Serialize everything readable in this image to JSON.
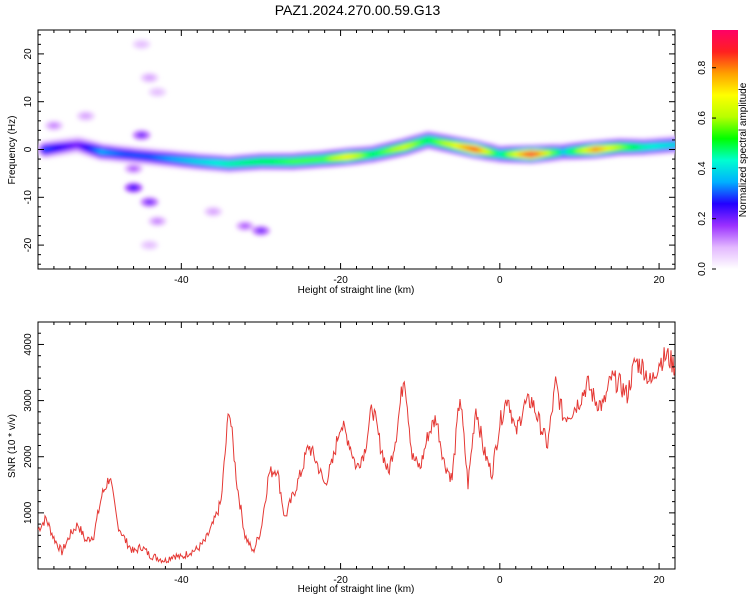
{
  "title": "PAZ1.2024.270.00.59.G13",
  "colors": {
    "snr_line": "#e53935",
    "colormap": [
      "#ffffff",
      "#e3b8ff",
      "#9b30ff",
      "#2200ff",
      "#00b0ff",
      "#00ffd0",
      "#00ff00",
      "#b8ff00",
      "#ffff00",
      "#ffa000",
      "#ff2020",
      "#ff0066"
    ]
  },
  "chart_data": [
    {
      "type": "heatmap",
      "xlabel": "Height of straight line (km)",
      "ylabel": "Frequency (Hz)",
      "xlim": [
        -58,
        22
      ],
      "ylim": [
        -25,
        25
      ],
      "xticks": [
        -40,
        -20,
        0,
        20
      ],
      "yticks": [
        -20,
        -10,
        0,
        10,
        20
      ],
      "xtick_labels": [
        "-40",
        "-20",
        "0",
        "20"
      ],
      "ytick_labels": [
        "-20",
        "-10",
        "0",
        "10",
        "20"
      ],
      "colorbar": {
        "label": "Normalized spectral amplitude",
        "range": [
          0,
          0.95
        ],
        "ticks": [
          0.0,
          0.2,
          0.4,
          0.6,
          0.8
        ],
        "tick_labels": [
          "0.0",
          "0.2",
          "0.4",
          "0.6",
          "0.8"
        ]
      },
      "ridge": [
        {
          "x": -57,
          "y": 0.0,
          "amp": 0.3
        },
        {
          "x": -55,
          "y": 0.5,
          "amp": 0.25
        },
        {
          "x": -53,
          "y": 1.0,
          "amp": 0.2
        },
        {
          "x": -50,
          "y": -0.5,
          "amp": 0.35
        },
        {
          "x": -47,
          "y": -1.0,
          "amp": 0.3
        },
        {
          "x": -44,
          "y": -1.5,
          "amp": 0.3
        },
        {
          "x": -41,
          "y": -2.0,
          "amp": 0.35
        },
        {
          "x": -38,
          "y": -2.5,
          "amp": 0.4
        },
        {
          "x": -34,
          "y": -3.0,
          "amp": 0.45
        },
        {
          "x": -30,
          "y": -2.5,
          "amp": 0.5
        },
        {
          "x": -26,
          "y": -2.5,
          "amp": 0.55
        },
        {
          "x": -22,
          "y": -2.0,
          "amp": 0.55
        },
        {
          "x": -19,
          "y": -1.5,
          "amp": 0.7
        },
        {
          "x": -16,
          "y": -1.0,
          "amp": 0.5
        },
        {
          "x": -12,
          "y": 0.5,
          "amp": 0.65
        },
        {
          "x": -9,
          "y": 2.0,
          "amp": 0.5
        },
        {
          "x": -6,
          "y": 1.0,
          "amp": 0.65
        },
        {
          "x": -3,
          "y": 0.0,
          "amp": 0.85
        },
        {
          "x": 0,
          "y": -1.0,
          "amp": 0.45
        },
        {
          "x": 4,
          "y": -1.0,
          "amp": 0.9
        },
        {
          "x": 8,
          "y": -0.5,
          "amp": 0.4
        },
        {
          "x": 12,
          "y": 0.0,
          "amp": 0.8
        },
        {
          "x": 15,
          "y": 0.5,
          "amp": 0.6
        },
        {
          "x": 18,
          "y": 0.5,
          "amp": 0.45
        },
        {
          "x": 22,
          "y": 1.0,
          "amp": 0.4
        }
      ],
      "blobs": [
        {
          "x": -45,
          "y": 22,
          "amp": 0.08
        },
        {
          "x": -44,
          "y": 15,
          "amp": 0.1
        },
        {
          "x": -43,
          "y": 12,
          "amp": 0.08
        },
        {
          "x": -45,
          "y": 3,
          "amp": 0.2
        },
        {
          "x": -46,
          "y": -4,
          "amp": 0.15
        },
        {
          "x": -46,
          "y": -8,
          "amp": 0.25
        },
        {
          "x": -44,
          "y": -11,
          "amp": 0.2
        },
        {
          "x": -43,
          "y": -15,
          "amp": 0.12
        },
        {
          "x": -44,
          "y": -20,
          "amp": 0.08
        },
        {
          "x": -36,
          "y": -13,
          "amp": 0.1
        },
        {
          "x": -32,
          "y": -16,
          "amp": 0.15
        },
        {
          "x": -30,
          "y": -17,
          "amp": 0.2
        },
        {
          "x": -56,
          "y": 5,
          "amp": 0.12
        },
        {
          "x": -52,
          "y": 7,
          "amp": 0.1
        }
      ]
    },
    {
      "type": "line",
      "xlabel": "Height of straight line (km)",
      "ylabel": "SNR (10 * v/v)",
      "xlim": [
        -58,
        22
      ],
      "ylim": [
        0,
        4400
      ],
      "xticks": [
        -40,
        -20,
        0,
        20
      ],
      "yticks": [
        1000,
        2000,
        3000,
        4000
      ],
      "xtick_labels": [
        "-40",
        "-20",
        "0",
        "20"
      ],
      "ytick_labels": [
        "1000",
        "2000",
        "3000",
        "4000"
      ],
      "series": [
        {
          "x": [
            -58,
            -57,
            -56,
            -55,
            -54,
            -53,
            -52,
            -51,
            -50,
            -49,
            -48,
            -47,
            -46,
            -45,
            -44,
            -43,
            -42,
            -41,
            -40,
            -39,
            -38,
            -37,
            -36,
            -35,
            -34,
            -33,
            -32,
            -31,
            -30,
            -29,
            -28,
            -27,
            -26,
            -25,
            -24,
            -23,
            -22,
            -21,
            -20,
            -19,
            -18,
            -17,
            -16,
            -15,
            -14,
            -13,
            -12,
            -11,
            -10,
            -9,
            -8,
            -7,
            -6,
            -5,
            -4,
            -3,
            -2,
            -1,
            0,
            1,
            2,
            3,
            4,
            5,
            6,
            7,
            8,
            9,
            10,
            11,
            12,
            13,
            14,
            15,
            16,
            17,
            18,
            19,
            20,
            21,
            22
          ],
          "y": [
            700,
            900,
            550,
            300,
            600,
            800,
            500,
            600,
            1300,
            1650,
            800,
            500,
            300,
            400,
            250,
            200,
            150,
            250,
            200,
            300,
            350,
            500,
            800,
            1200,
            2900,
            1500,
            600,
            300,
            700,
            1700,
            1800,
            900,
            1300,
            1700,
            2200,
            1900,
            1500,
            1900,
            2600,
            2300,
            1800,
            2100,
            2900,
            2200,
            1700,
            2400,
            3500,
            2000,
            1800,
            2400,
            2700,
            1900,
            1600,
            3100,
            1500,
            2900,
            2100,
            1700,
            2600,
            3100,
            2400,
            2900,
            3000,
            2600,
            2200,
            3300,
            2700,
            2800,
            3000,
            3300,
            3000,
            2900,
            3400,
            3300,
            3100,
            3700,
            3600,
            3300,
            3700,
            3800,
            3600
          ]
        }
      ]
    }
  ]
}
